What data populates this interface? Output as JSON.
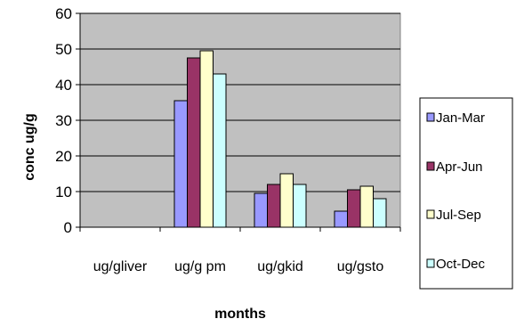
{
  "chart_data": {
    "type": "bar",
    "title": "",
    "xlabel": "months",
    "ylabel": "conc ug/g",
    "ylim": [
      0,
      60
    ],
    "yticks": [
      0,
      10,
      20,
      30,
      40,
      50,
      60
    ],
    "grid": true,
    "legend": "right",
    "categories": [
      "ug/gliver",
      "ug/g pm",
      "ug/gkid",
      "ug/gsto"
    ],
    "series": [
      {
        "name": "Jan-Mar",
        "color": "#9999ff",
        "values": [
          0,
          35.5,
          9.5,
          4.5
        ]
      },
      {
        "name": "Apr-Jun",
        "color": "#993366",
        "values": [
          0,
          47.5,
          12,
          10.5
        ]
      },
      {
        "name": "Jul-Sep",
        "color": "#ffffcc",
        "values": [
          0,
          49.5,
          15,
          11.5
        ]
      },
      {
        "name": "Oct-Dec",
        "color": "#ccffff",
        "values": [
          0,
          43,
          12,
          8
        ]
      }
    ],
    "plot_background": "#c0c0c0"
  }
}
